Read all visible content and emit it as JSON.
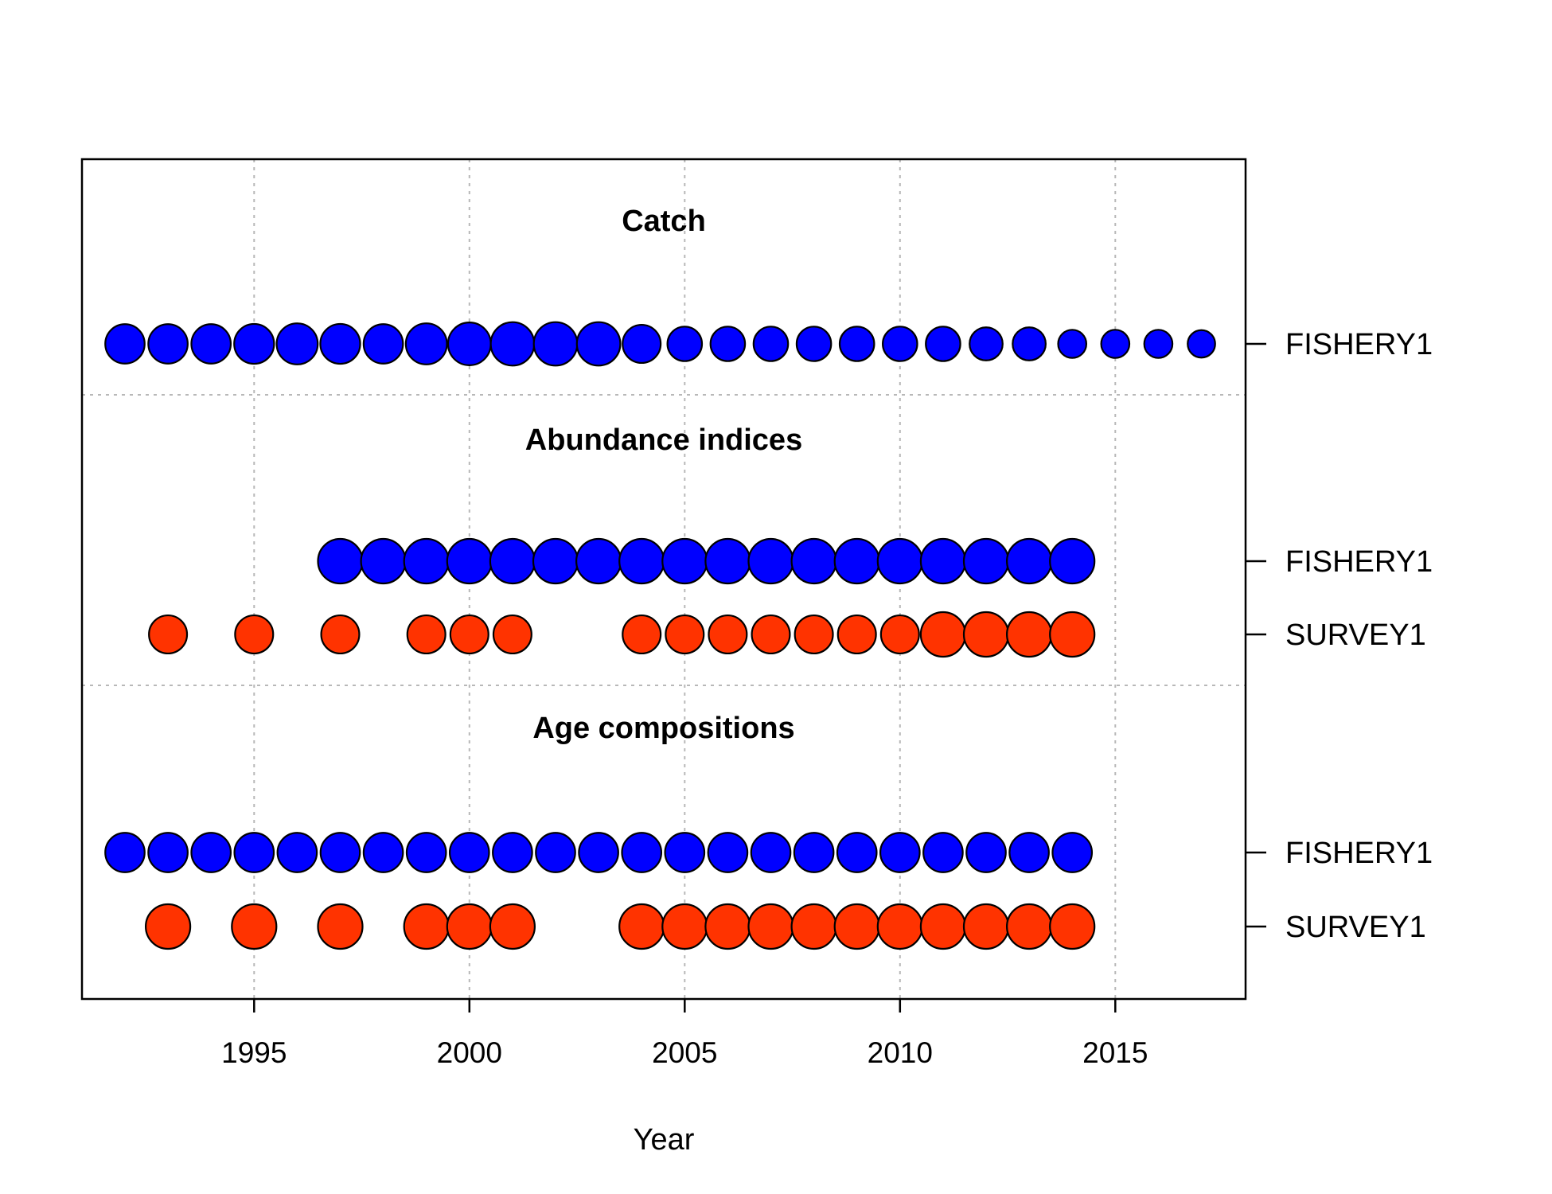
{
  "chart_data": {
    "type": "scatter",
    "xlabel": "Year",
    "xlim": [
      1992,
      2017
    ],
    "xticks": [
      1995,
      2000,
      2005,
      2010,
      2015
    ],
    "grid": true,
    "colors": {
      "FISHERY1": "#0000ff",
      "SURVEY1": "#ff3300"
    },
    "sections": [
      {
        "title": "Catch",
        "series": [
          {
            "name": "FISHERY1",
            "years": [
              1992,
              1993,
              1994,
              1995,
              1996,
              1997,
              1998,
              1999,
              2000,
              2001,
              2002,
              2003,
              2004,
              2005,
              2006,
              2007,
              2008,
              2009,
              2010,
              2011,
              2012,
              2013,
              2014,
              2015,
              2016,
              2017
            ],
            "sizes": [
              0.78,
              0.78,
              0.78,
              0.8,
              0.85,
              0.8,
              0.78,
              0.85,
              0.92,
              0.95,
              0.95,
              0.95,
              0.73,
              0.6,
              0.6,
              0.6,
              0.6,
              0.6,
              0.6,
              0.6,
              0.55,
              0.55,
              0.4,
              0.4,
              0.4,
              0.38
            ]
          }
        ]
      },
      {
        "title": "Abundance indices",
        "series": [
          {
            "name": "FISHERY1",
            "years": [
              1997,
              1998,
              1999,
              2000,
              2001,
              2002,
              2003,
              2004,
              2005,
              2006,
              2007,
              2008,
              2009,
              2010,
              2011,
              2012,
              2013,
              2014
            ],
            "sizes": [
              1,
              1,
              1,
              1,
              1,
              1,
              1,
              1,
              1,
              1,
              1,
              1,
              1,
              1,
              1,
              1,
              1,
              1
            ]
          },
          {
            "name": "SURVEY1",
            "years": [
              1993,
              1995,
              1997,
              1999,
              2000,
              2001,
              2004,
              2005,
              2006,
              2007,
              2008,
              2009,
              2010,
              2011,
              2012,
              2013,
              2014
            ],
            "sizes": [
              0.73,
              0.73,
              0.73,
              0.73,
              0.73,
              0.73,
              0.73,
              0.73,
              0.73,
              0.73,
              0.73,
              0.73,
              0.73,
              1,
              1,
              1,
              1
            ]
          }
        ]
      },
      {
        "title": "Age compositions",
        "series": [
          {
            "name": "FISHERY1",
            "years": [
              1992,
              1993,
              1994,
              1995,
              1996,
              1997,
              1998,
              1999,
              2000,
              2001,
              2002,
              2003,
              2004,
              2005,
              2006,
              2007,
              2008,
              2009,
              2010,
              2011,
              2012,
              2013,
              2014
            ],
            "sizes": [
              0.78,
              0.78,
              0.78,
              0.78,
              0.78,
              0.78,
              0.78,
              0.78,
              0.78,
              0.78,
              0.78,
              0.78,
              0.78,
              0.78,
              0.78,
              0.78,
              0.78,
              0.78,
              0.78,
              0.78,
              0.78,
              0.78,
              0.78
            ]
          },
          {
            "name": "SURVEY1",
            "years": [
              1993,
              1995,
              1997,
              1999,
              2000,
              2001,
              2004,
              2005,
              2006,
              2007,
              2008,
              2009,
              2010,
              2011,
              2012,
              2013,
              2014
            ],
            "sizes": [
              1,
              1,
              1,
              1,
              1,
              1,
              1,
              1,
              1,
              1,
              1,
              1,
              1,
              1,
              1,
              1,
              1
            ]
          }
        ]
      }
    ]
  }
}
